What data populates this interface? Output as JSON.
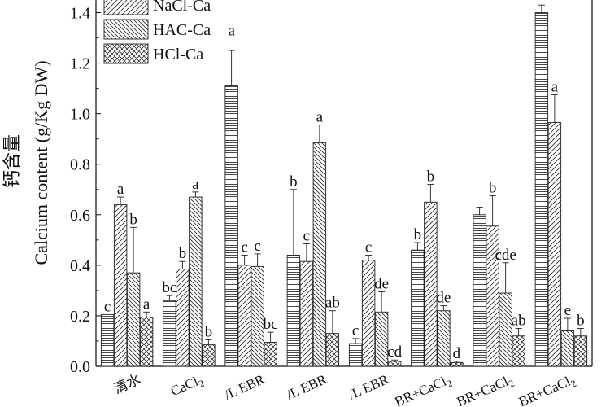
{
  "chart_data": {
    "type": "bar",
    "ylabel_cn": "钙含量",
    "ylabel": "Calcium content (g/Kg DW)",
    "ylim": [
      0,
      1.45
    ],
    "yticks": [
      "0.0",
      "0.2",
      "0.4",
      "0.6",
      "0.8",
      "1.0",
      "1.2",
      "1.4"
    ],
    "categories": [
      "清水",
      "CaCl2",
      "/L EBR",
      "/L EBR",
      "/L EBR",
      "BR+CaCl2",
      "BR+CaCl2",
      "BR+CaCl2"
    ],
    "series": [
      {
        "name": "",
        "values": [
          0.205,
          0.26,
          1.11,
          0.44,
          0.09,
          0.46,
          0.6,
          1.4
        ],
        "errors": [
          0.0,
          0.02,
          0.14,
          0.26,
          0.02,
          0.03,
          0.03,
          0.03
        ],
        "letters": [
          "c",
          "bc",
          "",
          "b",
          "c",
          "b",
          "",
          ""
        ]
      },
      {
        "name": "NaCl-Ca",
        "values": [
          0.64,
          0.385,
          0.4,
          0.415,
          0.42,
          0.65,
          0.555,
          0.965
        ],
        "errors": [
          0.03,
          0.03,
          0.04,
          0.07,
          0.02,
          0.07,
          0.12,
          0.11
        ],
        "letters": [
          "a",
          "b",
          "c",
          "c",
          "c",
          "b",
          "b",
          "a"
        ]
      },
      {
        "name": "HAC-Ca",
        "values": [
          0.37,
          0.67,
          0.395,
          0.885,
          0.215,
          0.22,
          0.29,
          0.14
        ],
        "errors": [
          0.18,
          0.02,
          0.05,
          0.07,
          0.08,
          0.02,
          0.12,
          0.05
        ],
        "letters": [
          "b",
          "a",
          "c",
          "a",
          "de",
          "de",
          "cde",
          "e"
        ]
      },
      {
        "name": "HCl-Ca",
        "values": [
          0.195,
          0.085,
          0.095,
          0.13,
          0.02,
          0.015,
          0.12,
          0.12
        ],
        "errors": [
          0.02,
          0.02,
          0.04,
          0.09,
          0.005,
          0.005,
          0.03,
          0.03
        ],
        "letters": [
          "a",
          "b",
          "bc",
          "ab",
          "cd",
          "d",
          "ab",
          "b"
        ]
      }
    ],
    "floating_labels": [
      {
        "text": "a",
        "category": 2,
        "y": 1.31
      }
    ],
    "legend": {
      "position": "top-left",
      "entries": [
        "NaCl-Ca",
        "HAC-Ca",
        "HCl-Ca"
      ]
    },
    "grid": false
  }
}
